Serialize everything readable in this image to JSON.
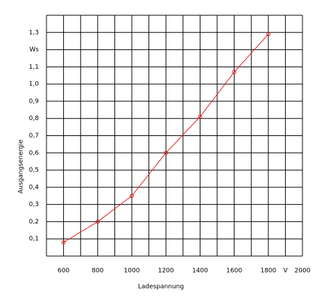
{
  "chart_data": {
    "type": "line",
    "x_label": "Ladespannung",
    "y_label": "Ausgangsenergie",
    "x_unit": "V",
    "x": [
      600,
      800,
      1000,
      1200,
      1400,
      1600,
      1800
    ],
    "series": [
      {
        "color": "#e0201c",
        "values": [
          0.08,
          0.2,
          0.35,
          0.6,
          0.81,
          1.07,
          1.29
        ]
      }
    ],
    "xlim": [
      500,
      2000
    ],
    "ylim": [
      0,
      1.4
    ],
    "xticks": [
      600,
      800,
      1000,
      1200,
      1400,
      1600,
      1800,
      2000
    ],
    "yticks": [
      {
        "value": 0.1,
        "label": "0,1"
      },
      {
        "value": 0.2,
        "label": "0,2"
      },
      {
        "value": 0.3,
        "label": "0,3"
      },
      {
        "value": 0.4,
        "label": "0,4"
      },
      {
        "value": 0.5,
        "label": "0,5"
      },
      {
        "value": 0.6,
        "label": "0,6"
      },
      {
        "value": 0.7,
        "label": "0,7"
      },
      {
        "value": 0.8,
        "label": "0,8"
      },
      {
        "value": 0.9,
        "label": "0,9"
      },
      {
        "value": 1.0,
        "label": "1,0"
      },
      {
        "value": 1.1,
        "label": "1,1"
      },
      {
        "value": 1.2,
        "label": "Ws"
      },
      {
        "value": 1.3,
        "label": "1,3"
      }
    ],
    "xgrid": [
      500,
      600,
      700,
      800,
      900,
      1000,
      1100,
      1200,
      1300,
      1400,
      1500,
      1600,
      1700,
      1800,
      1900,
      2000
    ],
    "ygrid": [
      0,
      0.1,
      0.2,
      0.3,
      0.4,
      0.5,
      0.6,
      0.7,
      0.8,
      0.9,
      1.0,
      1.1,
      1.2,
      1.3,
      1.4
    ],
    "grid": true
  }
}
